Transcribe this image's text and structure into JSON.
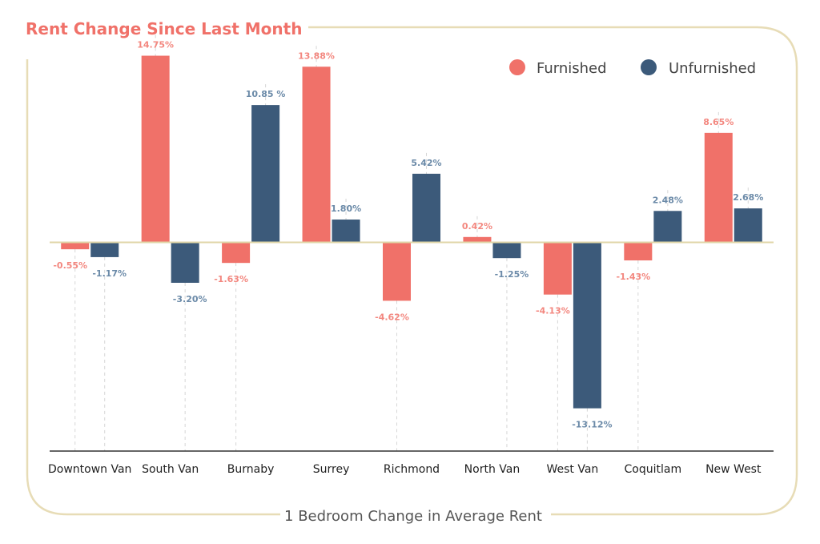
{
  "chart_data": {
    "type": "bar",
    "title": "Rent Change Since Last Month",
    "subtitle": "1 Bedroom Change in Average Rent",
    "categories": [
      "Downtown Van",
      "South Van",
      "Burnaby",
      "Surrey",
      "Richmond",
      "North Van",
      "West Van",
      "Coquitlam",
      "New West"
    ],
    "series": [
      {
        "name": "Furnished",
        "color": "#f07169",
        "values": [
          -0.55,
          14.75,
          -1.63,
          13.88,
          -4.62,
          0.42,
          -4.13,
          -1.43,
          8.65
        ],
        "labels": [
          "-0.55%",
          "14.75%",
          "-1.63%",
          "13.88%",
          "-4.62%",
          "0.42%",
          "-4.13%",
          "-1.43%",
          "8.65%"
        ]
      },
      {
        "name": "Unfurnished",
        "color": "#3c5a7a",
        "values": [
          -1.17,
          -3.2,
          10.85,
          1.8,
          5.42,
          -1.25,
          -13.12,
          2.48,
          2.68
        ],
        "labels": [
          "-1.17%",
          "-3.20%",
          "10.85 %",
          "1.80%",
          "5.42%",
          "-1.25%",
          "-13.12%",
          "2.48%",
          "2.68%"
        ]
      }
    ],
    "ylim": [
      -16.5,
      17
    ],
    "legend_position": "top-right",
    "frame_color": "#e7dcb6",
    "label_colors": {
      "Furnished": "#f3877f",
      "Unfurnished": "#6b8aa8"
    }
  }
}
